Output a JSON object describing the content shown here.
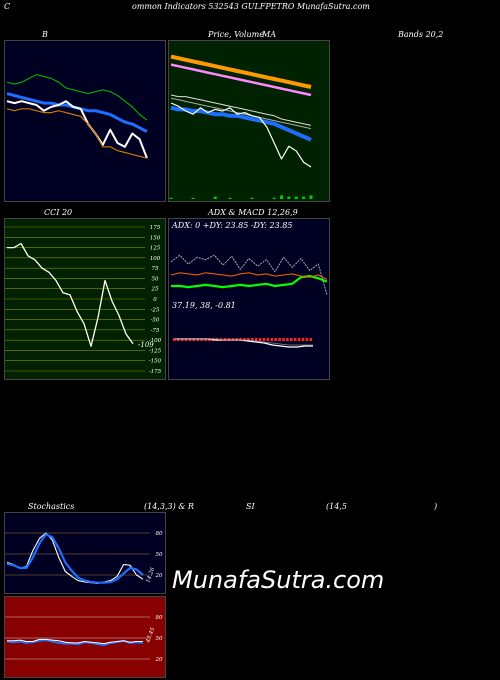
{
  "header": {
    "c_letter": "C",
    "title": "ommon  Indicators 532543 GULFPETRO MunafaSutra.com"
  },
  "labels": {
    "b": "B",
    "price_volume": "Price,  Volume",
    "ma": "MA",
    "bands": "Bands 20,2",
    "cci": "CCI 20",
    "adx": "ADX  & MACD 12,26,9",
    "adx_values": "ADX: 0  +DY: 23.85 -DY: 23.85",
    "macd_values": "37.19,  38,  -0.81",
    "stoch_left": "Stochastics",
    "stoch_params": "(14,3,3) & R",
    "rsi_si": "SI",
    "rsi_params": "(14,5",
    "rsi_close": ")",
    "brand": "MunafaSutra.com"
  },
  "colors": {
    "navy": "#000022",
    "green_bg": "#002200",
    "olive_bg": "#002200",
    "red_bg": "#880000",
    "blue": "#1e6fff",
    "orange": "#ff9900",
    "pink": "#ff88ff",
    "green_line": "#00cc00"
  },
  "chart_data": [
    {
      "type": "line",
      "name": "bollinger",
      "series": [
        {
          "key": "upper",
          "color": "#00aa00",
          "values": [
            52,
            51,
            52,
            54,
            56,
            55,
            54,
            52,
            49,
            48,
            47,
            46,
            47,
            48,
            47,
            45,
            42,
            39,
            35,
            32
          ]
        },
        {
          "key": "ma",
          "color": "#1e6fff",
          "values": [
            46,
            45,
            44,
            43,
            42,
            41,
            41,
            40,
            40,
            39,
            38,
            37,
            37,
            36,
            35,
            33,
            31,
            30,
            28,
            26
          ]
        },
        {
          "key": "close",
          "color": "#ffffff",
          "values": [
            42,
            41,
            42,
            41,
            40,
            37,
            39,
            40,
            42,
            39,
            38,
            30,
            25,
            19,
            27,
            20,
            18,
            25,
            22,
            12
          ]
        },
        {
          "key": "lower",
          "color": "#cc7700",
          "values": [
            38,
            37,
            38,
            38,
            37,
            36,
            36,
            37,
            36,
            35,
            34,
            30,
            25,
            18,
            18,
            16,
            15,
            14,
            13,
            12
          ]
        }
      ]
    },
    {
      "type": "line",
      "name": "price_ma",
      "series": [
        {
          "key": "ma_orange",
          "color": "#ff9900",
          "values": [
            84,
            83,
            82,
            81,
            80,
            79,
            78,
            77,
            76,
            75,
            74,
            73,
            72,
            71,
            70,
            69,
            68,
            67,
            66,
            65
          ]
        },
        {
          "key": "ma_pink",
          "color": "#ff88ff",
          "values": [
            79,
            78,
            77,
            76,
            75,
            74,
            73,
            72,
            71,
            70,
            69,
            68,
            67,
            66,
            65,
            64,
            63,
            62,
            61,
            60
          ]
        },
        {
          "key": "ma_gray1",
          "color": "#dddddd",
          "values": [
            60,
            59,
            59,
            58,
            57,
            56,
            55,
            54,
            53,
            52,
            51,
            50,
            49,
            48,
            47,
            45,
            44,
            43,
            42,
            41
          ]
        },
        {
          "key": "ma_gray2",
          "color": "#aaaaaa",
          "values": [
            58,
            57,
            56,
            55,
            54,
            53,
            52,
            51,
            50,
            49,
            48,
            47,
            46,
            45,
            44,
            43,
            42,
            41,
            40,
            39
          ]
        },
        {
          "key": "ma_blue",
          "color": "#1e6fff",
          "values": [
            52,
            51,
            51,
            50,
            50,
            49,
            48,
            48,
            47,
            47,
            46,
            45,
            44,
            43,
            42,
            40,
            38,
            36,
            34,
            32
          ]
        },
        {
          "key": "close",
          "color": "#ffffff",
          "values": [
            55,
            53,
            50,
            48,
            52,
            49,
            51,
            50,
            52,
            48,
            49,
            47,
            46,
            40,
            30,
            20,
            28,
            25,
            18,
            15
          ]
        }
      ],
      "volume": [
        1,
        0,
        0,
        1,
        0,
        0,
        2,
        0,
        1,
        0,
        0,
        1,
        0,
        0,
        1,
        3,
        2,
        2,
        2,
        3
      ]
    },
    {
      "type": "line",
      "name": "cci",
      "ylim": [
        -175,
        175
      ],
      "ticks": [
        175,
        150,
        125,
        100,
        75,
        50,
        25,
        0,
        -25,
        -50,
        -75,
        -100,
        -125,
        -150,
        -175
      ],
      "last_label": "-109",
      "values": [
        125,
        125,
        135,
        105,
        95,
        75,
        65,
        45,
        15,
        10,
        -30,
        -60,
        -115,
        -45,
        45,
        -5,
        -40,
        -85,
        -109
      ]
    },
    {
      "type": "line",
      "name": "adx",
      "series": [
        {
          "key": "plus_dy",
          "color": "#00ff00",
          "values": [
            30,
            30,
            29,
            30,
            31,
            30,
            29,
            30,
            31,
            30,
            31,
            32,
            30,
            31,
            32,
            38,
            39,
            37,
            34
          ]
        },
        {
          "key": "minus_dy",
          "color": "#ff6600",
          "values": [
            40,
            42,
            41,
            40,
            42,
            41,
            40,
            39,
            41,
            42,
            40,
            41,
            39,
            40,
            41,
            39,
            38,
            40,
            36
          ]
        },
        {
          "key": "adx",
          "color": "#aaaaaa",
          "values": [
            52,
            58,
            50,
            56,
            54,
            58,
            49,
            57,
            45,
            55,
            48,
            54,
            43,
            56,
            47,
            55,
            44,
            50,
            22
          ]
        }
      ]
    },
    {
      "type": "line",
      "name": "macd",
      "series": [
        {
          "key": "macd",
          "color": "#ffffff",
          "values": [
            2,
            2,
            2,
            2,
            2,
            1,
            1,
            1,
            1,
            0,
            -1,
            -2,
            -4,
            -5,
            -6,
            -6,
            -5,
            -5
          ]
        },
        {
          "key": "signal",
          "color": "#888888",
          "values": [
            2,
            2,
            2,
            2,
            2,
            2,
            1,
            1,
            1,
            1,
            0,
            -1,
            -2,
            -3,
            -4,
            -4,
            -4,
            -4
          ]
        }
      ],
      "histogram": [
        1,
        1,
        1,
        1,
        1,
        1,
        1,
        1,
        1,
        1,
        1,
        1,
        1,
        1,
        1,
        1,
        1,
        1,
        1,
        1,
        1,
        1,
        1,
        1,
        1,
        1,
        1,
        1,
        1,
        1,
        1,
        1,
        1,
        1,
        1,
        1
      ]
    },
    {
      "type": "line",
      "name": "stochastics",
      "ylim": [
        0,
        100
      ],
      "ticks": [
        80,
        50,
        20
      ],
      "last_label": "14.26",
      "series": [
        {
          "key": "k",
          "color": "#ffffff",
          "values": [
            38,
            35,
            30,
            32,
            55,
            72,
            80,
            70,
            45,
            25,
            18,
            12,
            10,
            9,
            8,
            10,
            12,
            18,
            35,
            34,
            20,
            14
          ]
        },
        {
          "key": "d",
          "color": "#1e6fff",
          "values": [
            36,
            34,
            30,
            30,
            45,
            65,
            78,
            74,
            58,
            38,
            26,
            16,
            12,
            10,
            9,
            9,
            10,
            14,
            22,
            30,
            28,
            20
          ]
        }
      ]
    },
    {
      "type": "line",
      "name": "rsi",
      "ylim": [
        0,
        100
      ],
      "ticks": [
        80,
        50,
        20
      ],
      "last_label": "43.45",
      "series": [
        {
          "key": "rsi",
          "color": "#1e6fff",
          "values": [
            45,
            44,
            45,
            43,
            44,
            46,
            47,
            45,
            43,
            42,
            42,
            41,
            44,
            43,
            41,
            40,
            43,
            44,
            46,
            43,
            44,
            43
          ]
        },
        {
          "key": "rsi2",
          "color": "#ffffff",
          "values": [
            46,
            46,
            47,
            45,
            45,
            48,
            48,
            47,
            46,
            44,
            43,
            43,
            45,
            44,
            43,
            42,
            44,
            45,
            46,
            44,
            45,
            45
          ]
        }
      ]
    }
  ]
}
